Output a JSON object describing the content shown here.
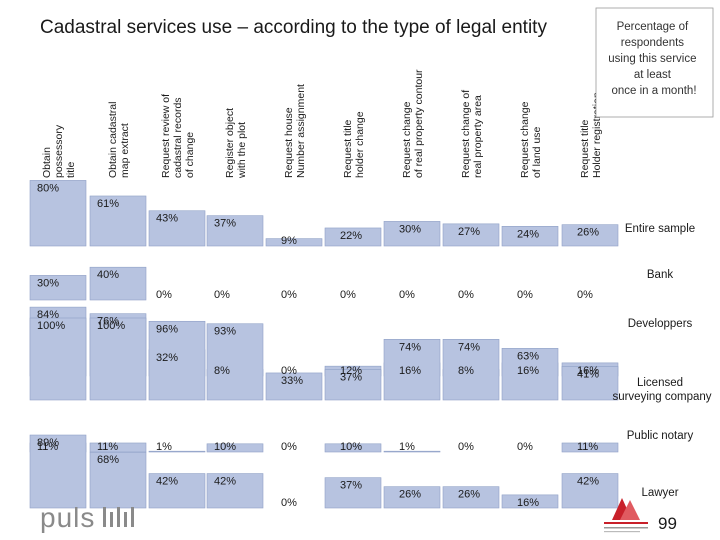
{
  "title": "Cadastral services use – according to the type of legal entity",
  "legend_note": [
    "Percentage of",
    "respondents",
    "using this service",
    "at least",
    "once in a month!"
  ],
  "page_number": "99",
  "logo_text": "puls",
  "colors": {
    "bar_fill": "#b7c3e0",
    "bar_stroke": "#8fa0c6",
    "text": "#1a1a1a",
    "note_border": "#999999",
    "logo_red": "#c8202a"
  },
  "chart_data": {
    "type": "bar",
    "title": "Cadastral services use – according to the type of legal entity",
    "ylim": [
      0,
      100
    ],
    "value_suffix": "%",
    "categories": [
      [
        "Obtain",
        "possessory",
        "title"
      ],
      [
        "Obtain cadastral",
        "map extract"
      ],
      [
        "Request review of",
        "cadastral records",
        "of change"
      ],
      [
        "Register object",
        "with the plot"
      ],
      [
        "Request house",
        "Number assignment"
      ],
      [
        "Request title",
        "holder change"
      ],
      [
        "Request change",
        "of real property contour"
      ],
      [
        "Request change of",
        "real property area"
      ],
      [
        "Request change",
        "of land use"
      ],
      [
        "Request title",
        "Holder registration"
      ]
    ],
    "series": [
      {
        "name": [
          "Entire sample"
        ],
        "values": [
          80,
          61,
          43,
          37,
          9,
          22,
          30,
          27,
          24,
          26
        ]
      },
      {
        "name": [
          "Bank"
        ],
        "values": [
          30,
          40,
          0,
          0,
          0,
          0,
          0,
          0,
          0,
          0
        ]
      },
      {
        "name": [
          "Developpers"
        ],
        "values": [
          84,
          76,
          32,
          8,
          0,
          12,
          16,
          8,
          16,
          16
        ]
      },
      {
        "name": [
          "Licensed",
          "surveying company"
        ],
        "values": [
          100,
          100,
          96,
          93,
          33,
          37,
          74,
          74,
          63,
          41
        ]
      },
      {
        "name": [
          "Public notary"
        ],
        "values": [
          11,
          11,
          1,
          10,
          0,
          10,
          1,
          0,
          0,
          11
        ]
      },
      {
        "name": [
          "Lawyer"
        ],
        "values": [
          89,
          68,
          42,
          42,
          0,
          37,
          26,
          26,
          16,
          42
        ]
      }
    ]
  }
}
